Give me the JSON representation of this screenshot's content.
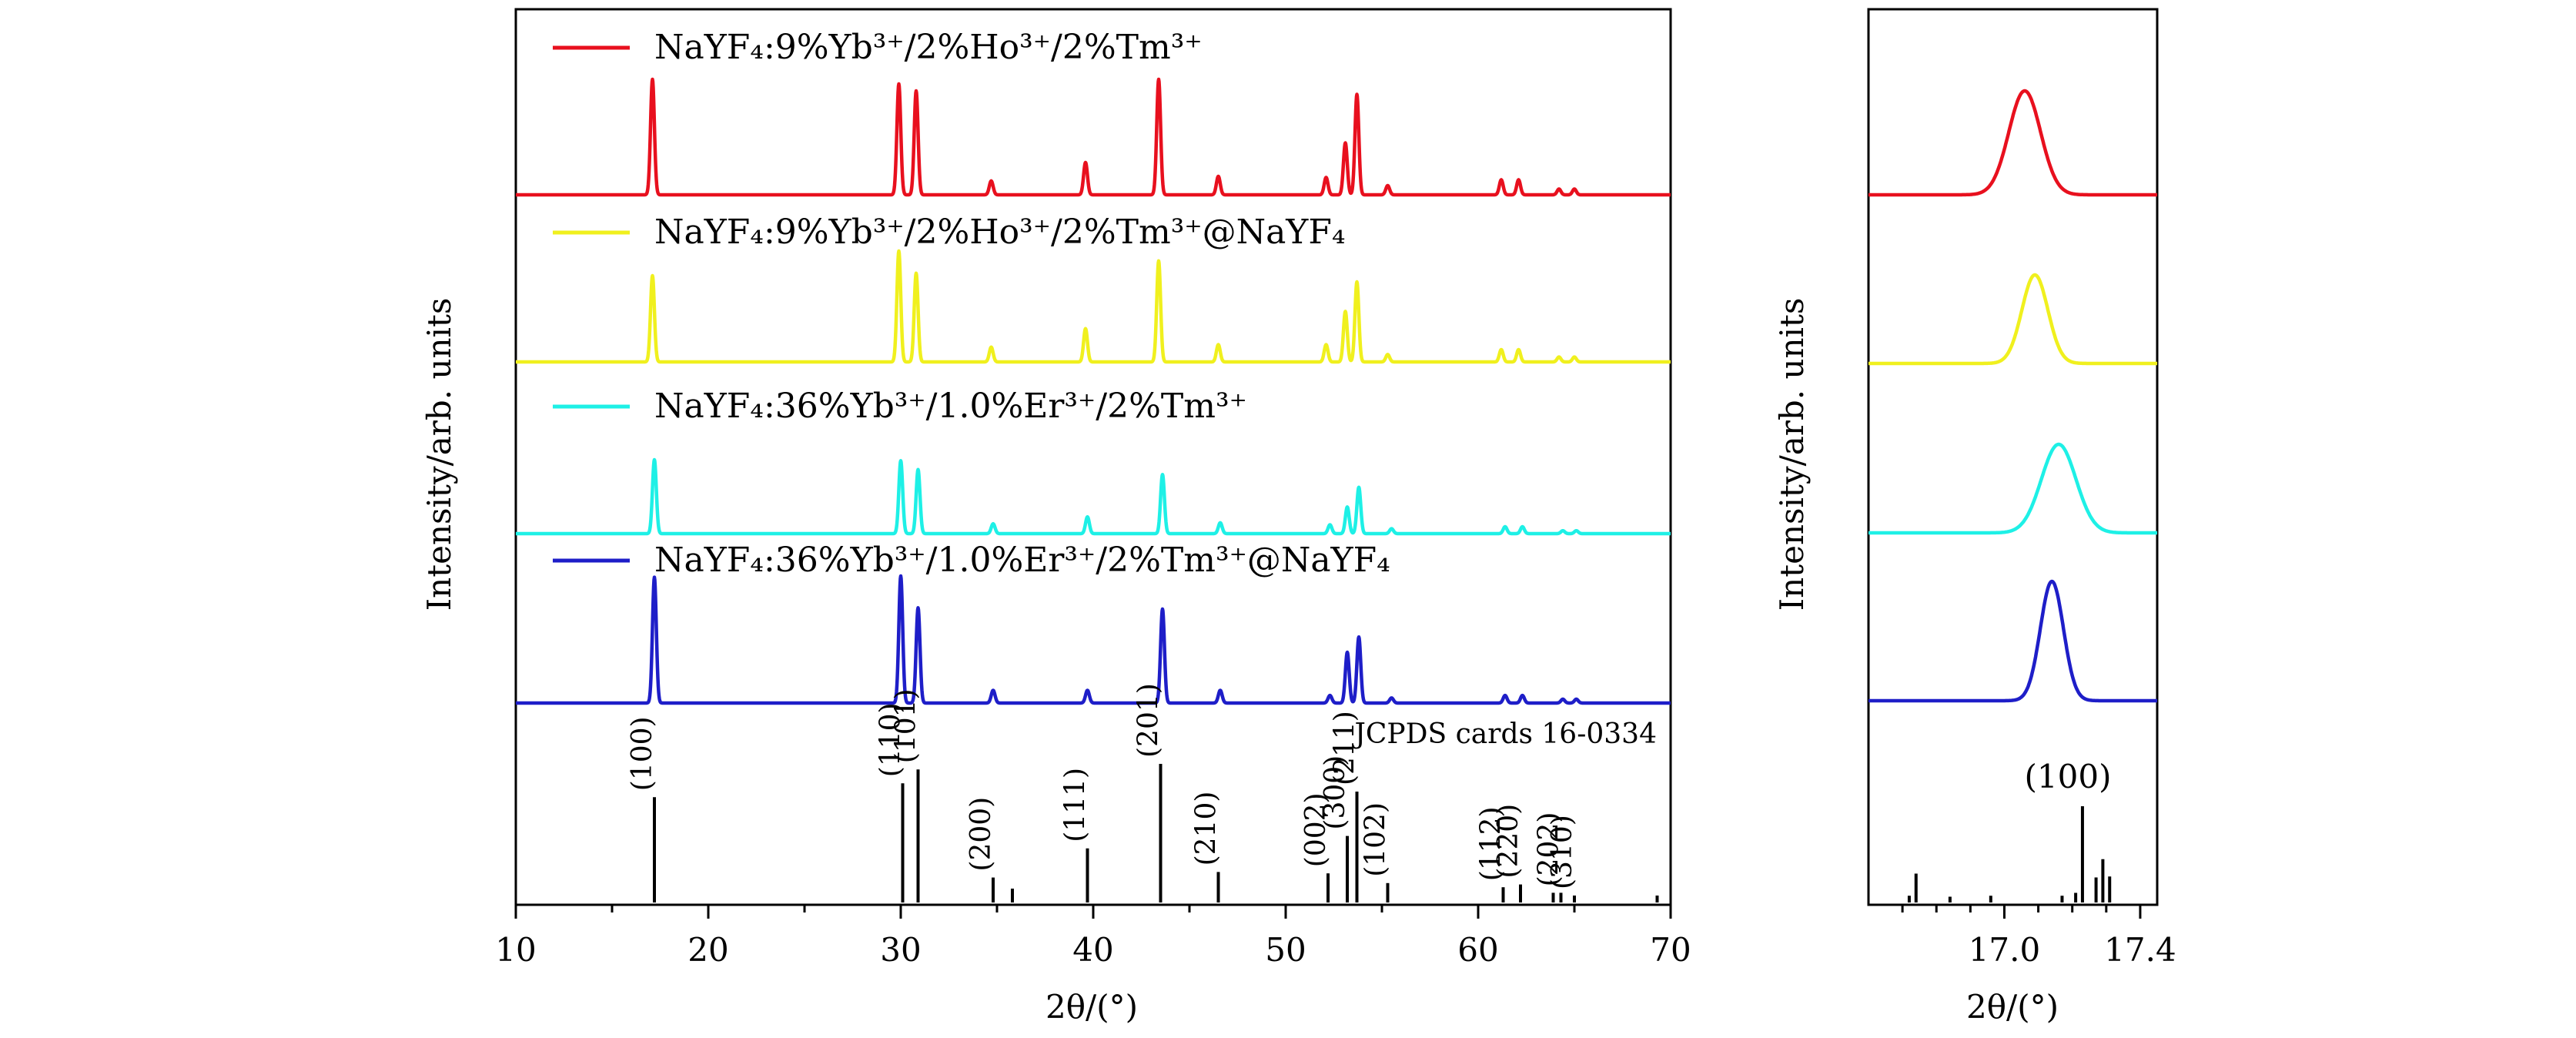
{
  "chart_data": [
    {
      "type": "line",
      "title": "",
      "xlabel": "2θ/(°)",
      "ylabel": "Intensity/arb. units",
      "xlim": [
        10,
        70
      ],
      "xticks": [
        10,
        20,
        30,
        40,
        50,
        60,
        70
      ],
      "grid": false,
      "legend_position": "inside, each entry above its trace",
      "series": [
        {
          "name": "NaYF₄:9%Yb³⁺/2%Ho³⁺/2%Tm³⁺",
          "color": "#e8101e",
          "peaks_2theta": [
            17.1,
            29.9,
            30.8,
            34.7,
            39.6,
            43.4,
            46.5,
            52.1,
            53.1,
            53.7,
            55.3,
            61.2,
            62.1,
            64.2,
            65.0
          ],
          "peak_rel_intensity": [
            1.0,
            0.96,
            0.9,
            0.12,
            0.28,
            1.0,
            0.16,
            0.15,
            0.45,
            0.87,
            0.08,
            0.13,
            0.13,
            0.05,
            0.05
          ]
        },
        {
          "name": "NaYF₄:9%Yb³⁺/2%Ho³⁺/2%Tm³⁺@NaYF₄",
          "color": "#f0f01e",
          "peaks_2theta": [
            17.1,
            29.9,
            30.8,
            34.7,
            39.6,
            43.4,
            46.5,
            52.1,
            53.1,
            53.7,
            55.3,
            61.2,
            62.1,
            64.2,
            65.0
          ],
          "peak_rel_intensity": [
            0.7,
            0.9,
            0.72,
            0.12,
            0.27,
            0.82,
            0.14,
            0.14,
            0.41,
            0.65,
            0.06,
            0.1,
            0.1,
            0.04,
            0.04
          ]
        },
        {
          "name": "NaYF₄:36%Yb³⁺/1.0%Er³⁺/2%Tm³⁺",
          "color": "#1ef0e6",
          "peaks_2theta": [
            17.2,
            30.0,
            30.9,
            34.8,
            39.7,
            43.6,
            46.6,
            52.3,
            53.2,
            53.8,
            55.5,
            61.4,
            62.3,
            64.4,
            65.1
          ],
          "peak_rel_intensity": [
            0.75,
            0.74,
            0.65,
            0.1,
            0.17,
            0.6,
            0.11,
            0.09,
            0.27,
            0.47,
            0.05,
            0.07,
            0.07,
            0.03,
            0.03
          ]
        },
        {
          "name": "NaYF₄:36%Yb³⁺/1.0%Er³⁺/2%Tm³⁺@NaYF₄",
          "color": "#1e1ec8",
          "peaks_2theta": [
            17.2,
            30.0,
            30.9,
            34.8,
            39.7,
            43.6,
            46.6,
            52.3,
            53.2,
            53.8,
            55.5,
            61.4,
            62.3,
            64.4,
            65.1
          ],
          "peak_rel_intensity": [
            0.99,
            1.0,
            0.75,
            0.1,
            0.1,
            0.74,
            0.1,
            0.06,
            0.4,
            0.52,
            0.04,
            0.06,
            0.06,
            0.03,
            0.03
          ]
        }
      ],
      "reference": {
        "label": "JCPDS cards 16-0334",
        "sticks": [
          {
            "x": 17.2,
            "rel": 0.76,
            "hkl": "(100)"
          },
          {
            "x": 30.1,
            "rel": 0.86,
            "hkl": "(110)"
          },
          {
            "x": 30.9,
            "rel": 0.96,
            "hkl": "(101)"
          },
          {
            "x": 34.8,
            "rel": 0.18,
            "hkl": "(200)"
          },
          {
            "x": 35.8,
            "rel": 0.1,
            "hkl": ""
          },
          {
            "x": 39.7,
            "rel": 0.39,
            "hkl": "(111)"
          },
          {
            "x": 43.5,
            "rel": 1.0,
            "hkl": "(201)"
          },
          {
            "x": 46.5,
            "rel": 0.22,
            "hkl": "(210)"
          },
          {
            "x": 52.2,
            "rel": 0.21,
            "hkl": "(002)"
          },
          {
            "x": 53.2,
            "rel": 0.48,
            "hkl": "(300)"
          },
          {
            "x": 53.7,
            "rel": 0.8,
            "hkl": "(211)"
          },
          {
            "x": 55.3,
            "rel": 0.14,
            "hkl": "(102)"
          },
          {
            "x": 61.3,
            "rel": 0.11,
            "hkl": "(112)"
          },
          {
            "x": 62.2,
            "rel": 0.13,
            "hkl": "(220)"
          },
          {
            "x": 63.9,
            "rel": 0.07,
            "hkl": ""
          },
          {
            "x": 64.3,
            "rel": 0.07,
            "hkl": "(202)"
          },
          {
            "x": 65.0,
            "rel": 0.05,
            "hkl": "(310)"
          },
          {
            "x": 69.3,
            "rel": 0.05,
            "hkl": ""
          }
        ]
      }
    },
    {
      "type": "line",
      "title": "",
      "xlabel": "2θ/(°)",
      "ylabel": "Intensity/arb. units",
      "xlim": [
        16.6,
        17.45
      ],
      "xticks": [
        17.0,
        17.4
      ],
      "xtick_labels": [
        "17.0",
        "17.4"
      ],
      "grid": false,
      "series": [
        {
          "name": "NaYF₄:9%Yb³⁺/2%Ho³⁺/2%Tm³⁺",
          "color": "#e8101e",
          "peak_2theta": 17.06,
          "fwhm": 0.11
        },
        {
          "name": "NaYF₄:9%Yb³⁺/2%Ho³⁺/2%Tm³⁺@NaYF₄",
          "color": "#f0f01e",
          "peak_2theta": 17.09,
          "fwhm": 0.09
        },
        {
          "name": "NaYF₄:36%Yb³⁺/1.0%Er³⁺/2%Tm³⁺",
          "color": "#1ef0e6",
          "peak_2theta": 17.16,
          "fwhm": 0.12
        },
        {
          "name": "NaYF₄:36%Yb³⁺/1.0%Er³⁺/2%Tm³⁺@NaYF₄",
          "color": "#1e1ec8",
          "peak_2theta": 17.14,
          "fwhm": 0.08
        }
      ],
      "reference": {
        "label": "(100)",
        "label_x": 17.25,
        "sticks": [
          {
            "x": 16.72,
            "rel": 0.07
          },
          {
            "x": 16.74,
            "rel": 0.3
          },
          {
            "x": 16.84,
            "rel": 0.06
          },
          {
            "x": 16.96,
            "rel": 0.07
          },
          {
            "x": 17.17,
            "rel": 0.07
          },
          {
            "x": 17.21,
            "rel": 0.1
          },
          {
            "x": 17.23,
            "rel": 1.0
          },
          {
            "x": 17.27,
            "rel": 0.26
          },
          {
            "x": 17.29,
            "rel": 0.45
          },
          {
            "x": 17.31,
            "rel": 0.27
          }
        ]
      }
    }
  ]
}
